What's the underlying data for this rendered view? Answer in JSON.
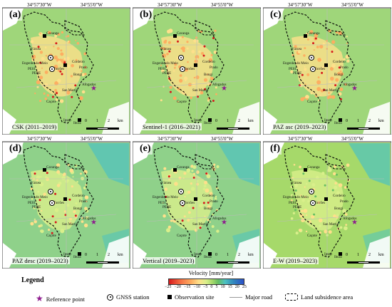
{
  "coords": {
    "top_left": "34°57'30\"W",
    "top_right": "34°55'0\"W",
    "left_top": "8°2'30\"S",
    "left_bottom": "8°5'0\"S"
  },
  "places": [
    "Cavanga",
    "Várzea",
    "Engenho do Meio",
    "PE01",
    "PERE",
    "Torrões",
    "Cordeiro",
    "Prado",
    "Bongi",
    "Afogados",
    "San Martin",
    "Caçote",
    "Ipsep",
    "Ibura"
  ],
  "scale": {
    "l0": "0",
    "l1": "1",
    "l2": "2",
    "unit": "km"
  },
  "panels": [
    {
      "letter": "(a)",
      "caption": "CSK (2011–2019)"
    },
    {
      "letter": "(b)",
      "caption": "Sentinel-1 (2016–2021)"
    },
    {
      "letter": "(c)",
      "caption": "PAZ asc (2019–2023)"
    },
    {
      "letter": "(d)",
      "caption": "PAZ desc (2019–2023)"
    },
    {
      "letter": "(e)",
      "caption": "Vertical (2019–2023)"
    },
    {
      "letter": "(f)",
      "caption": "E-W (2019–2023)"
    }
  ],
  "legend": {
    "title": "Legend",
    "velocity_title": "Velocity [mm/year]",
    "ticks": [
      "−25",
      "−20",
      "−15",
      "−10",
      "−5",
      "0",
      "5",
      "10",
      "15",
      "20",
      "25"
    ],
    "items": {
      "reference": "Reference point",
      "gnss": "GNSS station",
      "obs": "Observation site",
      "road": "Major road",
      "area": "Land subsidence area"
    }
  },
  "colors": {
    "subsidence": "#d7191c",
    "uplift": "#2b50c8",
    "stable": "#a6d96a"
  }
}
